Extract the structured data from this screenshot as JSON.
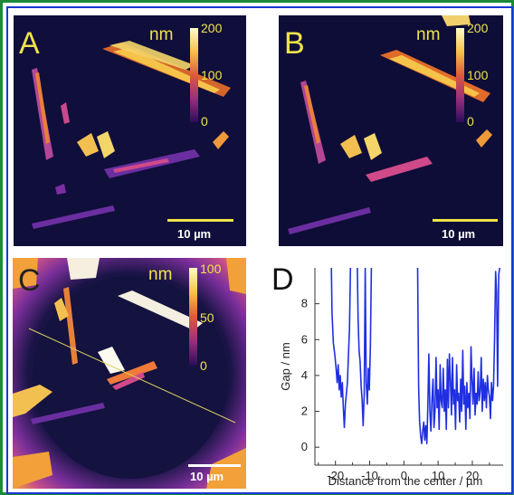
{
  "panels": {
    "A": {
      "letter": "A",
      "unit": "nm",
      "ticks": [
        "200",
        "100",
        "0"
      ],
      "scalebar": "10 µm"
    },
    "B": {
      "letter": "B",
      "unit": "nm",
      "ticks": [
        "200",
        "100",
        "0"
      ],
      "scalebar": "10 µm"
    },
    "C": {
      "letter": "C",
      "unit": "nm",
      "ticks": [
        "100",
        "50",
        "0"
      ],
      "scalebar": "10 µm"
    },
    "D": {
      "letter": "D"
    }
  },
  "colors": {
    "frame_outer": "#1b8a3a",
    "frame_inner": "#1a36d6",
    "line": "#1f2fe0",
    "label_yellow": "#f0e44a"
  },
  "chart_data": {
    "type": "line",
    "xlabel": "Distance from the center / µm",
    "ylabel": "Gap / nm",
    "xlim": [
      -26,
      29
    ],
    "ylim": [
      -1,
      10
    ],
    "xticks": [
      -20,
      -10,
      0,
      10,
      20
    ],
    "yticks": [
      0,
      2,
      4,
      6,
      8
    ],
    "x_tick_labels": [
      "-20",
      "-10",
      "0",
      "10",
      "20"
    ],
    "y_tick_labels": [
      "0",
      "2",
      "4",
      "6",
      "8"
    ],
    "series": [
      {
        "segments": [
          [
            [
              -21.2,
              10
            ],
            [
              -21.0,
              7.5
            ],
            [
              -20.6,
              5.8
            ],
            [
              -20.2,
              5.2
            ],
            [
              -19.8,
              4.4
            ],
            [
              -19.5,
              3.6
            ],
            [
              -19.2,
              4.6
            ],
            [
              -18.9,
              3.2
            ],
            [
              -18.6,
              4.0
            ],
            [
              -18.3,
              2.8
            ],
            [
              -18.0,
              3.6
            ],
            [
              -17.7,
              2.2
            ],
            [
              -17.4,
              1.1
            ],
            [
              -17.1,
              2.4
            ],
            [
              -16.8,
              3.0
            ],
            [
              -16.5,
              3.6
            ],
            [
              -16.2,
              5.2
            ],
            [
              -15.9,
              6.6
            ],
            [
              -15.6,
              10
            ]
          ],
          [
            [
              -13.6,
              10
            ],
            [
              -13.4,
              7.2
            ],
            [
              -13.1,
              5.4
            ],
            [
              -12.8,
              4.8
            ],
            [
              -12.5,
              3.4
            ],
            [
              -12.2,
              2.6
            ],
            [
              -11.9,
              1.2
            ],
            [
              -11.6,
              3.0
            ],
            [
              -11.3,
              10
            ],
            [
              -11.0,
              3.6
            ],
            [
              -10.7,
              2.4
            ],
            [
              -10.4,
              4.4
            ],
            [
              -10.1,
              3.2
            ],
            [
              -9.8,
              5.6
            ],
            [
              -9.5,
              10
            ]
          ],
          [
            [
              4.0,
              10
            ],
            [
              4.3,
              3.4
            ],
            [
              4.6,
              1.4
            ],
            [
              4.9,
              0.6
            ],
            [
              5.2,
              0.2
            ],
            [
              5.5,
              0.9
            ],
            [
              5.8,
              1.4
            ],
            [
              6.1,
              0.4
            ],
            [
              6.4,
              1.2
            ],
            [
              6.7,
              0.2
            ],
            [
              7.0,
              2.3
            ],
            [
              7.3,
              5.2
            ],
            [
              7.6,
              2.0
            ],
            [
              7.9,
              0.9
            ],
            [
              8.2,
              2.6
            ],
            [
              8.5,
              3.8
            ],
            [
              8.8,
              1.1
            ],
            [
              9.1,
              2.0
            ],
            [
              9.4,
              5.0
            ],
            [
              9.7,
              2.2
            ],
            [
              10.0,
              3.2
            ],
            [
              10.3,
              1.0
            ],
            [
              10.6,
              4.6
            ],
            [
              10.9,
              2.6
            ],
            [
              11.2,
              2.2
            ],
            [
              11.5,
              4.4
            ],
            [
              11.8,
              2.0
            ],
            [
              12.1,
              3.2
            ],
            [
              12.4,
              1.0
            ],
            [
              12.7,
              4.9
            ],
            [
              13.0,
              2.2
            ],
            [
              13.3,
              5.2
            ],
            [
              13.6,
              3.6
            ],
            [
              13.9,
              1.8
            ],
            [
              14.2,
              5.0
            ],
            [
              14.5,
              2.4
            ],
            [
              14.8,
              3.2
            ],
            [
              15.1,
              1.0
            ],
            [
              15.4,
              4.6
            ],
            [
              15.7,
              2.6
            ],
            [
              16.0,
              3.0
            ],
            [
              16.3,
              1.4
            ],
            [
              16.6,
              3.8
            ],
            [
              16.9,
              2.0
            ],
            [
              17.2,
              5.4
            ],
            [
              17.5,
              2.4
            ],
            [
              17.8,
              3.4
            ],
            [
              18.1,
              1.0
            ],
            [
              18.4,
              3.6
            ],
            [
              18.7,
              2.2
            ],
            [
              19.0,
              3.0
            ],
            [
              19.3,
              1.6
            ],
            [
              19.6,
              5.6
            ],
            [
              19.9,
              3.8
            ],
            [
              20.2,
              2.4
            ],
            [
              20.5,
              4.4
            ],
            [
              20.8,
              1.8
            ],
            [
              21.1,
              3.0
            ],
            [
              21.4,
              2.4
            ],
            [
              21.7,
              4.2
            ],
            [
              22.0,
              2.6
            ],
            [
              22.3,
              3.2
            ],
            [
              22.6,
              5.0
            ],
            [
              22.9,
              2.0
            ],
            [
              23.2,
              3.8
            ],
            [
              23.5,
              2.6
            ],
            [
              23.8,
              3.6
            ],
            [
              24.1,
              2.2
            ],
            [
              24.4,
              4.0
            ],
            [
              24.7,
              3.2
            ],
            [
              25.0,
              2.8
            ],
            [
              25.3,
              1.6
            ],
            [
              25.6,
              3.6
            ],
            [
              25.9,
              2.6
            ],
            [
              26.2,
              3.4
            ],
            [
              26.5,
              6.0
            ],
            [
              26.8,
              9.8
            ],
            [
              27.1,
              8.6
            ],
            [
              27.4,
              3.4
            ],
            [
              27.7,
              9.6
            ],
            [
              28.0,
              10
            ]
          ]
        ]
      }
    ]
  }
}
